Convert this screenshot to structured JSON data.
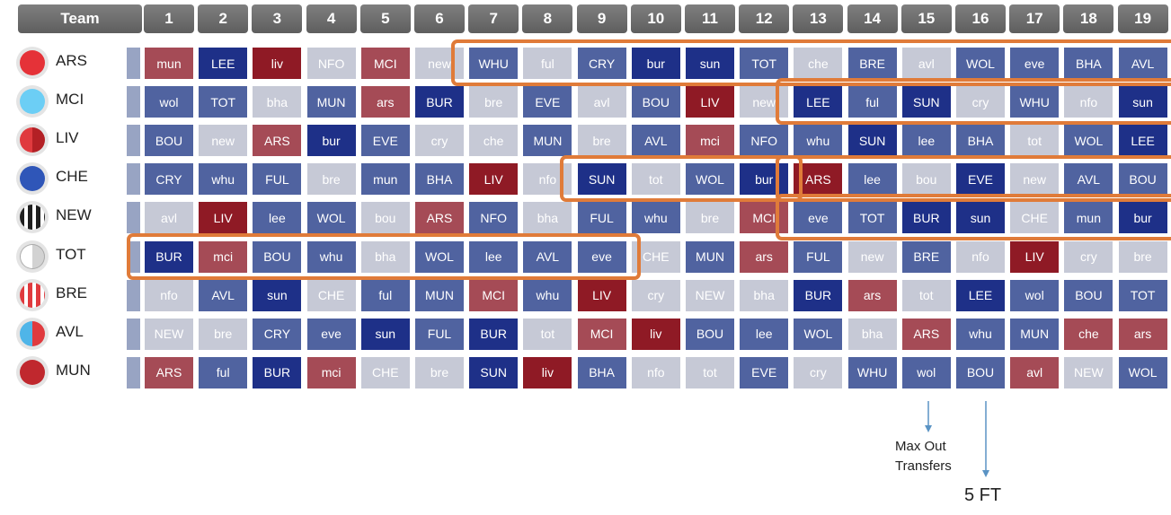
{
  "header": {
    "team_label": "Team",
    "gameweeks": [
      "1",
      "2",
      "3",
      "4",
      "5",
      "6",
      "7",
      "8",
      "9",
      "10",
      "11",
      "12",
      "13",
      "14",
      "15",
      "16",
      "17",
      "18",
      "19"
    ]
  },
  "teams": [
    {
      "code": "ARS",
      "badge": "ars-badge-icon",
      "fixtures": [
        "mun",
        "LEE",
        "liv",
        "NFO",
        "MCI",
        "new",
        "WHU",
        "ful",
        "CRY",
        "bur",
        "sun",
        "TOT",
        "che",
        "BRE",
        "avl",
        "WOL",
        "eve",
        "BHA",
        "AVL"
      ]
    },
    {
      "code": "MCI",
      "badge": "mci-badge-icon",
      "fixtures": [
        "wol",
        "TOT",
        "bha",
        "MUN",
        "ars",
        "BUR",
        "bre",
        "EVE",
        "avl",
        "BOU",
        "LIV",
        "new",
        "LEE",
        "ful",
        "SUN",
        "cry",
        "WHU",
        "nfo",
        "sun"
      ]
    },
    {
      "code": "LIV",
      "badge": "liv-badge-icon",
      "fixtures": [
        "BOU",
        "new",
        "ARS",
        "bur",
        "EVE",
        "cry",
        "che",
        "MUN",
        "bre",
        "AVL",
        "mci",
        "NFO",
        "whu",
        "SUN",
        "lee",
        "BHA",
        "tot",
        "WOL",
        "LEE"
      ]
    },
    {
      "code": "CHE",
      "badge": "che-badge-icon",
      "fixtures": [
        "CRY",
        "whu",
        "FUL",
        "bre",
        "mun",
        "BHA",
        "LIV",
        "nfo",
        "SUN",
        "tot",
        "WOL",
        "bur",
        "ARS",
        "lee",
        "bou",
        "EVE",
        "new",
        "AVL",
        "BOU"
      ]
    },
    {
      "code": "NEW",
      "badge": "new-badge-icon",
      "fixtures": [
        "avl",
        "LIV",
        "lee",
        "WOL",
        "bou",
        "ARS",
        "NFO",
        "bha",
        "FUL",
        "whu",
        "bre",
        "MCI",
        "eve",
        "TOT",
        "BUR",
        "sun",
        "CHE",
        "mun",
        "bur"
      ]
    },
    {
      "code": "TOT",
      "badge": "tot-badge-icon",
      "fixtures": [
        "BUR",
        "mci",
        "BOU",
        "whu",
        "bha",
        "WOL",
        "lee",
        "AVL",
        "eve",
        "CHE",
        "MUN",
        "ars",
        "FUL",
        "new",
        "BRE",
        "nfo",
        "LIV",
        "cry",
        "bre"
      ]
    },
    {
      "code": "BRE",
      "badge": "bre-badge-icon",
      "fixtures": [
        "nfo",
        "AVL",
        "sun",
        "CHE",
        "ful",
        "MUN",
        "MCI",
        "whu",
        "LIV",
        "cry",
        "NEW",
        "bha",
        "BUR",
        "ars",
        "tot",
        "LEE",
        "wol",
        "BOU",
        "TOT"
      ]
    },
    {
      "code": "AVL",
      "badge": "avl-badge-icon",
      "fixtures": [
        "NEW",
        "bre",
        "CRY",
        "eve",
        "sun",
        "FUL",
        "BUR",
        "tot",
        "MCI",
        "liv",
        "BOU",
        "lee",
        "WOL",
        "bha",
        "ARS",
        "whu",
        "MUN",
        "che",
        "ars"
      ]
    },
    {
      "code": "MUN",
      "badge": "mun-badge-icon",
      "fixtures": [
        "ARS",
        "ful",
        "BUR",
        "mci",
        "CHE",
        "bre",
        "SUN",
        "liv",
        "BHA",
        "nfo",
        "tot",
        "EVE",
        "cry",
        "WHU",
        "wol",
        "BOU",
        "avl",
        "NEW",
        "WOL"
      ]
    }
  ],
  "difficulty": [
    [
      4,
      1,
      5,
      3,
      4,
      3,
      2,
      3,
      2,
      1,
      1,
      2,
      3,
      2,
      3,
      2,
      2,
      2,
      2
    ],
    [
      2,
      2,
      3,
      2,
      4,
      1,
      3,
      2,
      3,
      2,
      5,
      3,
      1,
      2,
      1,
      3,
      2,
      3,
      1
    ],
    [
      2,
      3,
      4,
      1,
      2,
      3,
      3,
      2,
      3,
      2,
      4,
      2,
      2,
      1,
      2,
      2,
      3,
      2,
      1
    ],
    [
      2,
      2,
      2,
      3,
      2,
      2,
      5,
      3,
      1,
      3,
      2,
      1,
      5,
      2,
      3,
      1,
      3,
      2,
      2
    ],
    [
      3,
      5,
      2,
      2,
      3,
      4,
      2,
      3,
      2,
      2,
      3,
      4,
      2,
      2,
      1,
      1,
      3,
      2,
      1
    ],
    [
      1,
      4,
      2,
      2,
      3,
      2,
      2,
      2,
      2,
      3,
      2,
      4,
      2,
      3,
      2,
      3,
      5,
      3,
      3
    ],
    [
      3,
      2,
      1,
      3,
      2,
      2,
      4,
      2,
      5,
      3,
      3,
      3,
      1,
      4,
      3,
      1,
      2,
      2,
      2
    ],
    [
      3,
      3,
      2,
      2,
      1,
      2,
      1,
      3,
      4,
      5,
      2,
      2,
      2,
      3,
      4,
      2,
      2,
      4,
      4
    ],
    [
      4,
      2,
      1,
      4,
      3,
      3,
      1,
      5,
      2,
      3,
      3,
      2,
      3,
      2,
      2,
      2,
      4,
      3,
      2
    ]
  ],
  "colors": {
    "1": "#1e3088",
    "2": "#5063a0",
    "3": "#c6c9d6",
    "4": "#a54b56",
    "5": "#8f1a25",
    "header": "#6d6d6d",
    "highlight": "#e07b39",
    "arrow": "#5a93c4"
  },
  "annotations": {
    "max_out_line1": "Max Out",
    "max_out_line2": "Transfers",
    "five_ft": "5 FT"
  }
}
